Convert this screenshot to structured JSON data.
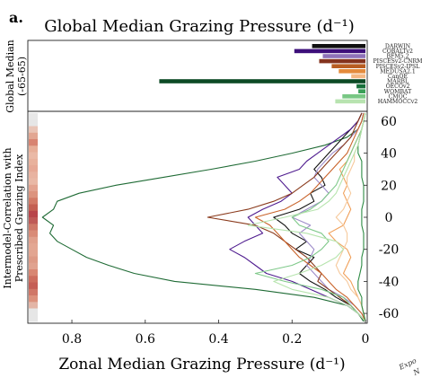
{
  "panel_label": "a.",
  "chart_data": [
    {
      "type": "bar",
      "orientation": "horizontal",
      "title": "Global Median Grazing Pressure (d⁻¹)",
      "ylabel_lines": [
        "Global Median",
        "(-65-65)"
      ],
      "xlim": [
        0,
        0.95
      ],
      "x_reversed": true,
      "categories": [
        "DARWIN",
        "COBALTv2",
        "BFM5.2",
        "PISCESv2-CNRM",
        "PISCESv2-IPSL",
        "MEDUSA2.1",
        "CanOE",
        "MARBL",
        "OECOv2",
        "WOMBAT",
        "CMOC",
        "HAMMOCCv2"
      ],
      "values": [
        0.15,
        0.2,
        0.12,
        0.13,
        0.095,
        0.075,
        0.04,
        0.58,
        0.025,
        0.02,
        0.065,
        0.085
      ],
      "colors": [
        "#111111",
        "#3d0f7a",
        "#8e72b9",
        "#84331e",
        "#b85d22",
        "#e48b3c",
        "#f5b884",
        "#0c4a25",
        "#17703a",
        "#3a9f57",
        "#78c784",
        "#b8e3b0"
      ]
    },
    {
      "type": "line",
      "orientation": "vertical-profile",
      "xlabel": "Zonal Median Grazing Pressure (d⁻¹)",
      "ylabel_lines": [
        "Intermodel-Correlation with",
        "Prescribed Grazing Index"
      ],
      "xlim": [
        0,
        0.92
      ],
      "x_reversed": true,
      "ylim": [
        -65,
        65
      ],
      "x_ticks": [
        0.8,
        0.6,
        0.4,
        0.2,
        0
      ],
      "x_tick_labels": [
        "0.8",
        "0.6",
        "0.4",
        "0.2",
        "0"
      ],
      "y_ticks": [
        60,
        40,
        20,
        0,
        -20,
        -40,
        -60
      ],
      "y_tick_labels": [
        "60",
        "40",
        "20",
        "0",
        "-20",
        "-40",
        "-60"
      ],
      "latitudes": [
        -65,
        -60,
        -55,
        -50,
        -45,
        -40,
        -35,
        -30,
        -25,
        -20,
        -15,
        -10,
        -5,
        0,
        5,
        10,
        15,
        20,
        25,
        30,
        35,
        40,
        45,
        50,
        55,
        60,
        65
      ],
      "series": [
        {
          "color": "#1f6b35",
          "values": [
            0.005,
            0.02,
            0.05,
            0.14,
            0.3,
            0.52,
            0.63,
            0.7,
            0.76,
            0.8,
            0.84,
            0.86,
            0.85,
            0.88,
            0.85,
            0.84,
            0.78,
            0.68,
            0.55,
            0.42,
            0.3,
            0.2,
            0.11,
            0.05,
            0.02,
            0.01,
            0.005
          ]
        },
        {
          "color": "#111111",
          "values": [
            0,
            0.02,
            0.04,
            0.08,
            0.11,
            0.15,
            0.18,
            0.16,
            0.14,
            0.19,
            0.16,
            0.2,
            0.22,
            0.25,
            0.18,
            0.14,
            0.15,
            0.11,
            0.12,
            0.14,
            0.12,
            0.1,
            0.08,
            0.06,
            0.04,
            0.02,
            0.01
          ]
        },
        {
          "color": "#4f1c8f",
          "values": [
            0,
            0.02,
            0.05,
            0.1,
            0.15,
            0.2,
            0.27,
            0.3,
            0.33,
            0.37,
            0.33,
            0.28,
            0.3,
            0.32,
            0.28,
            0.23,
            0.2,
            0.22,
            0.24,
            0.18,
            0.16,
            0.13,
            0.1,
            0.07,
            0.04,
            0.02,
            0.01
          ]
        },
        {
          "color": "#9d8bc9",
          "values": [
            0,
            0.01,
            0.03,
            0.06,
            0.1,
            0.12,
            0.14,
            0.16,
            0.15,
            0.14,
            0.16,
            0.18,
            0.15,
            0.2,
            0.16,
            0.12,
            0.1,
            0.12,
            0.14,
            0.13,
            0.11,
            0.09,
            0.06,
            0.04,
            0.02,
            0.01,
            0.005
          ]
        },
        {
          "color": "#8a3a1c",
          "values": [
            0,
            0.02,
            0.04,
            0.07,
            0.1,
            0.13,
            0.12,
            0.14,
            0.16,
            0.19,
            0.22,
            0.25,
            0.3,
            0.43,
            0.32,
            0.25,
            0.2,
            0.17,
            0.14,
            0.12,
            0.1,
            0.08,
            0.06,
            0.04,
            0.03,
            0.02,
            0.01
          ]
        },
        {
          "color": "#c9632a",
          "values": [
            0,
            0.01,
            0.03,
            0.05,
            0.08,
            0.1,
            0.12,
            0.15,
            0.18,
            0.2,
            0.22,
            0.24,
            0.26,
            0.3,
            0.22,
            0.18,
            0.15,
            0.13,
            0.11,
            0.09,
            0.07,
            0.05,
            0.04,
            0.03,
            0.02,
            0.01,
            0.005
          ]
        },
        {
          "color": "#f0a05a",
          "values": [
            0,
            0.005,
            0.01,
            0.02,
            0.03,
            0.04,
            0.06,
            0.05,
            0.04,
            0.05,
            0.08,
            0.1,
            0.06,
            0.05,
            0.04,
            0.05,
            0.06,
            0.05,
            0.06,
            0.07,
            0.05,
            0.04,
            0.03,
            0.02,
            0.01,
            0.005,
            0
          ]
        },
        {
          "color": "#f6c99c",
          "values": [
            0,
            0.005,
            0.01,
            0.02,
            0.04,
            0.05,
            0.07,
            0.08,
            0.07,
            0.06,
            0.05,
            0.05,
            0.06,
            0.08,
            0.06,
            0.05,
            0.04,
            0.05,
            0.05,
            0.04,
            0.03,
            0.03,
            0.02,
            0.015,
            0.01,
            0.005,
            0
          ]
        },
        {
          "color": "#2e8b45",
          "values": [
            0,
            0.005,
            0.01,
            0.01,
            0.02,
            0.02,
            0.015,
            0.01,
            0.01,
            0.005,
            0.005,
            0.005,
            0.01,
            0.01,
            0.01,
            0.005,
            0.005,
            0.005,
            0.01,
            0.01,
            0.01,
            0.02,
            0.02,
            0.015,
            0.01,
            0.005,
            0
          ]
        },
        {
          "color": "#7fc98a",
          "values": [
            0,
            0.02,
            0.04,
            0.06,
            0.12,
            0.22,
            0.3,
            0.2,
            0.15,
            0.12,
            0.1,
            0.12,
            0.18,
            0.2,
            0.15,
            0.12,
            0.1,
            0.08,
            0.07,
            0.06,
            0.05,
            0.04,
            0.03,
            0.02,
            0.01,
            0.005,
            0
          ]
        },
        {
          "color": "#b6e4ad",
          "values": [
            0,
            0.02,
            0.05,
            0.1,
            0.2,
            0.25,
            0.18,
            0.12,
            0.08,
            0.06,
            0.08,
            0.16,
            0.32,
            0.22,
            0.13,
            0.1,
            0.08,
            0.07,
            0.06,
            0.05,
            0.04,
            0.03,
            0.02,
            0.015,
            0.01,
            0.005,
            0
          ]
        }
      ],
      "correlation_strip": {
        "latitudes": [
          62,
          58,
          54,
          50,
          46,
          42,
          38,
          34,
          30,
          26,
          22,
          18,
          14,
          10,
          6,
          2,
          -2,
          -6,
          -10,
          -14,
          -18,
          -22,
          -26,
          -30,
          -34,
          -38,
          -42,
          -46,
          -50,
          -54,
          -58,
          -62
        ],
        "colors": [
          "#e8e8e8",
          "#e6e6e6",
          "#e9c4b6",
          "#e2a692",
          "#d88472",
          "#e7ae98",
          "#eab9a6",
          "#e8b19c",
          "#e6a895",
          "#e8b3a1",
          "#e9b8a6",
          "#e3a390",
          "#dc937e",
          "#d27a66",
          "#c46052",
          "#b8454a",
          "#bf5a57",
          "#cf7868",
          "#d98b77",
          "#e0a08c",
          "#e3a793",
          "#e2a591",
          "#dd9a86",
          "#e0a28f",
          "#d88672",
          "#cd6d5e",
          "#c55e55",
          "#d07767",
          "#dc917c",
          "#e3b5a6",
          "#e6e6e6",
          "#e6e6e6"
        ]
      }
    }
  ],
  "cutoff_text": [
    "Expo",
    "N"
  ]
}
